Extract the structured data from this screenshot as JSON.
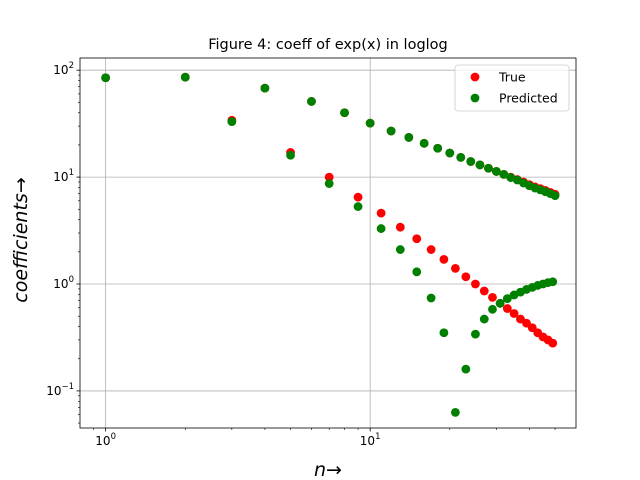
{
  "chart_data": {
    "type": "scatter",
    "title": "Figure 4: coeff of exp(x) in loglog",
    "xlabel": "n→",
    "ylabel": "coefficients→",
    "xscale": "log",
    "yscale": "log",
    "xlim": [
      0.8,
      60
    ],
    "ylim": [
      0.045,
      130
    ],
    "grid": true,
    "legend_position": "top-right",
    "xticks": [
      {
        "value": 1,
        "base": "10",
        "exp": "0"
      },
      {
        "value": 10,
        "base": "10",
        "exp": "1"
      }
    ],
    "yticks": [
      {
        "value": 0.1,
        "base": "10",
        "exp": "−1"
      },
      {
        "value": 1,
        "base": "10",
        "exp": "0"
      },
      {
        "value": 10,
        "base": "10",
        "exp": "1"
      },
      {
        "value": 100,
        "base": "10",
        "exp": "2"
      }
    ],
    "series": [
      {
        "name": "True",
        "color": "#ff0000",
        "points": [
          [
            1,
            85
          ],
          [
            2,
            86
          ],
          [
            3,
            34
          ],
          [
            4,
            68
          ],
          [
            5,
            17
          ],
          [
            6,
            51
          ],
          [
            7,
            10
          ],
          [
            8,
            40
          ],
          [
            9,
            6.5
          ],
          [
            10,
            32
          ],
          [
            11,
            4.6
          ],
          [
            12,
            27
          ],
          [
            13,
            3.4
          ],
          [
            14,
            23.5
          ],
          [
            15,
            2.65
          ],
          [
            16,
            20.7
          ],
          [
            17,
            2.1
          ],
          [
            18,
            18.6
          ],
          [
            19,
            1.7
          ],
          [
            20,
            16.8
          ],
          [
            21,
            1.4
          ],
          [
            22,
            15.3
          ],
          [
            23,
            1.17
          ],
          [
            24,
            14.0
          ],
          [
            25,
            1.0
          ],
          [
            26,
            13.0
          ],
          [
            27,
            0.86
          ],
          [
            28,
            12.1
          ],
          [
            29,
            0.75
          ],
          [
            30,
            11.3
          ],
          [
            31,
            0.66
          ],
          [
            32,
            10.6
          ],
          [
            33,
            0.59
          ],
          [
            34,
            10.0
          ],
          [
            35,
            0.53
          ],
          [
            36,
            9.5
          ],
          [
            37,
            0.47
          ],
          [
            38,
            9.0
          ],
          [
            39,
            0.43
          ],
          [
            40,
            8.5
          ],
          [
            41,
            0.39
          ],
          [
            42,
            8.1
          ],
          [
            43,
            0.35
          ],
          [
            44,
            7.8
          ],
          [
            45,
            0.32
          ],
          [
            46,
            7.5
          ],
          [
            47,
            0.3
          ],
          [
            48,
            7.2
          ],
          [
            49,
            0.28
          ],
          [
            50,
            6.9
          ]
        ]
      },
      {
        "name": "Predicted",
        "color": "#008000",
        "points": [
          [
            1,
            85
          ],
          [
            2,
            86
          ],
          [
            3,
            33
          ],
          [
            4,
            68
          ],
          [
            5,
            16
          ],
          [
            6,
            51
          ],
          [
            7,
            8.7
          ],
          [
            8,
            40
          ],
          [
            9,
            5.3
          ],
          [
            10,
            32
          ],
          [
            11,
            3.3
          ],
          [
            12,
            27
          ],
          [
            13,
            2.1
          ],
          [
            14,
            23.5
          ],
          [
            15,
            1.3
          ],
          [
            16,
            20.7
          ],
          [
            17,
            0.74
          ],
          [
            18,
            18.6
          ],
          [
            19,
            0.35
          ],
          [
            20,
            16.8
          ],
          [
            21,
            0.063
          ],
          [
            22,
            15.3
          ],
          [
            23,
            0.16
          ],
          [
            24,
            14.0
          ],
          [
            25,
            0.34
          ],
          [
            26,
            13.0
          ],
          [
            27,
            0.47
          ],
          [
            28,
            12.1
          ],
          [
            29,
            0.58
          ],
          [
            30,
            11.3
          ],
          [
            31,
            0.66
          ],
          [
            32,
            10.6
          ],
          [
            33,
            0.73
          ],
          [
            34,
            9.9
          ],
          [
            35,
            0.79
          ],
          [
            36,
            9.4
          ],
          [
            37,
            0.84
          ],
          [
            38,
            8.8
          ],
          [
            39,
            0.89
          ],
          [
            40,
            8.3
          ],
          [
            41,
            0.93
          ],
          [
            42,
            7.9
          ],
          [
            43,
            0.97
          ],
          [
            44,
            7.6
          ],
          [
            45,
            1.0
          ],
          [
            46,
            7.3
          ],
          [
            47,
            1.03
          ],
          [
            48,
            7.0
          ],
          [
            49,
            1.05
          ],
          [
            50,
            6.7
          ]
        ]
      }
    ]
  }
}
